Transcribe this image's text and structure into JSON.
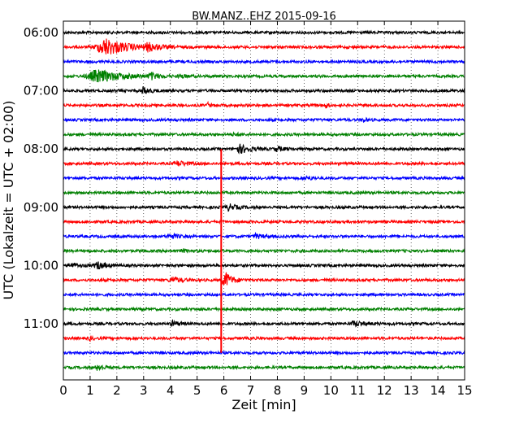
{
  "chart_data": {
    "type": "line",
    "title": "BW.MANZ..EHZ 2015-09-16",
    "xlabel": "Zeit  [min]",
    "ylabel": "UTC (Lokalzeit = UTC + 02:00)",
    "xlim": [
      0,
      15
    ],
    "x_ticks": [
      0,
      1,
      2,
      3,
      4,
      5,
      6,
      7,
      8,
      9,
      10,
      11,
      12,
      13,
      14,
      15
    ],
    "y_tick_labels": [
      "06:00",
      "07:00",
      "08:00",
      "09:00",
      "10:00",
      "11:00"
    ],
    "y_tick_rows": [
      0,
      4,
      8,
      12,
      16,
      20
    ],
    "grid": true,
    "row_colors": [
      "#000000",
      "#ff0000",
      "#0000ff",
      "#008000"
    ],
    "trace_count": 24,
    "events": [
      {
        "row": 1,
        "x": 1.6,
        "amp": 1.0,
        "dur": 1.3
      },
      {
        "row": 1,
        "x": 3.2,
        "amp": 0.45,
        "dur": 0.5
      },
      {
        "row": 3,
        "x": 1.3,
        "amp": 0.75,
        "dur": 1.4
      },
      {
        "row": 3,
        "x": 3.3,
        "amp": 0.35,
        "dur": 0.4
      },
      {
        "row": 3,
        "x": 4.4,
        "amp": 0.2,
        "dur": 0.3
      },
      {
        "row": 4,
        "x": 3.0,
        "amp": 0.4,
        "dur": 0.4
      },
      {
        "row": 5,
        "x": 5.4,
        "amp": 0.25,
        "dur": 0.15
      },
      {
        "row": 5,
        "x": 9.8,
        "amp": 0.3,
        "dur": 0.15
      },
      {
        "row": 6,
        "x": 11.2,
        "amp": 0.2,
        "dur": 0.3
      },
      {
        "row": 7,
        "x": 6.4,
        "amp": 0.15,
        "dur": 0.3
      },
      {
        "row": 8,
        "x": 6.6,
        "amp": 0.5,
        "dur": 0.6
      },
      {
        "row": 8,
        "x": 8.0,
        "amp": 0.25,
        "dur": 0.4
      },
      {
        "row": 9,
        "x": 4.3,
        "amp": 0.3,
        "dur": 0.5
      },
      {
        "row": 10,
        "x": 9.1,
        "amp": 0.25,
        "dur": 0.3
      },
      {
        "row": 12,
        "x": 6.2,
        "amp": 0.35,
        "dur": 0.5
      },
      {
        "row": 14,
        "x": 4.0,
        "amp": 0.3,
        "dur": 0.4
      },
      {
        "row": 14,
        "x": 7.2,
        "amp": 0.25,
        "dur": 0.4
      },
      {
        "row": 15,
        "x": 4.5,
        "amp": 0.15,
        "dur": 0.3
      },
      {
        "row": 16,
        "x": 1.3,
        "amp": 0.4,
        "dur": 0.5
      },
      {
        "row": 16,
        "x": 0.3,
        "amp": 0.3,
        "dur": 0.4
      },
      {
        "row": 17,
        "x": 4.1,
        "amp": 0.35,
        "dur": 0.5
      },
      {
        "row": 17,
        "x": 6.05,
        "amp": 1.0,
        "dur": 0.4
      },
      {
        "row": 20,
        "x": 4.1,
        "amp": 0.3,
        "dur": 0.4
      },
      {
        "row": 20,
        "x": 10.9,
        "amp": 0.3,
        "dur": 0.6
      },
      {
        "row": 21,
        "x": 1.0,
        "amp": 0.25,
        "dur": 0.15
      },
      {
        "row": 23,
        "x": 1.3,
        "amp": 0.35,
        "dur": 0.3
      }
    ],
    "spike": {
      "x": 5.9,
      "from_row": 8,
      "to_row": 22,
      "color": "#ff0000"
    }
  }
}
